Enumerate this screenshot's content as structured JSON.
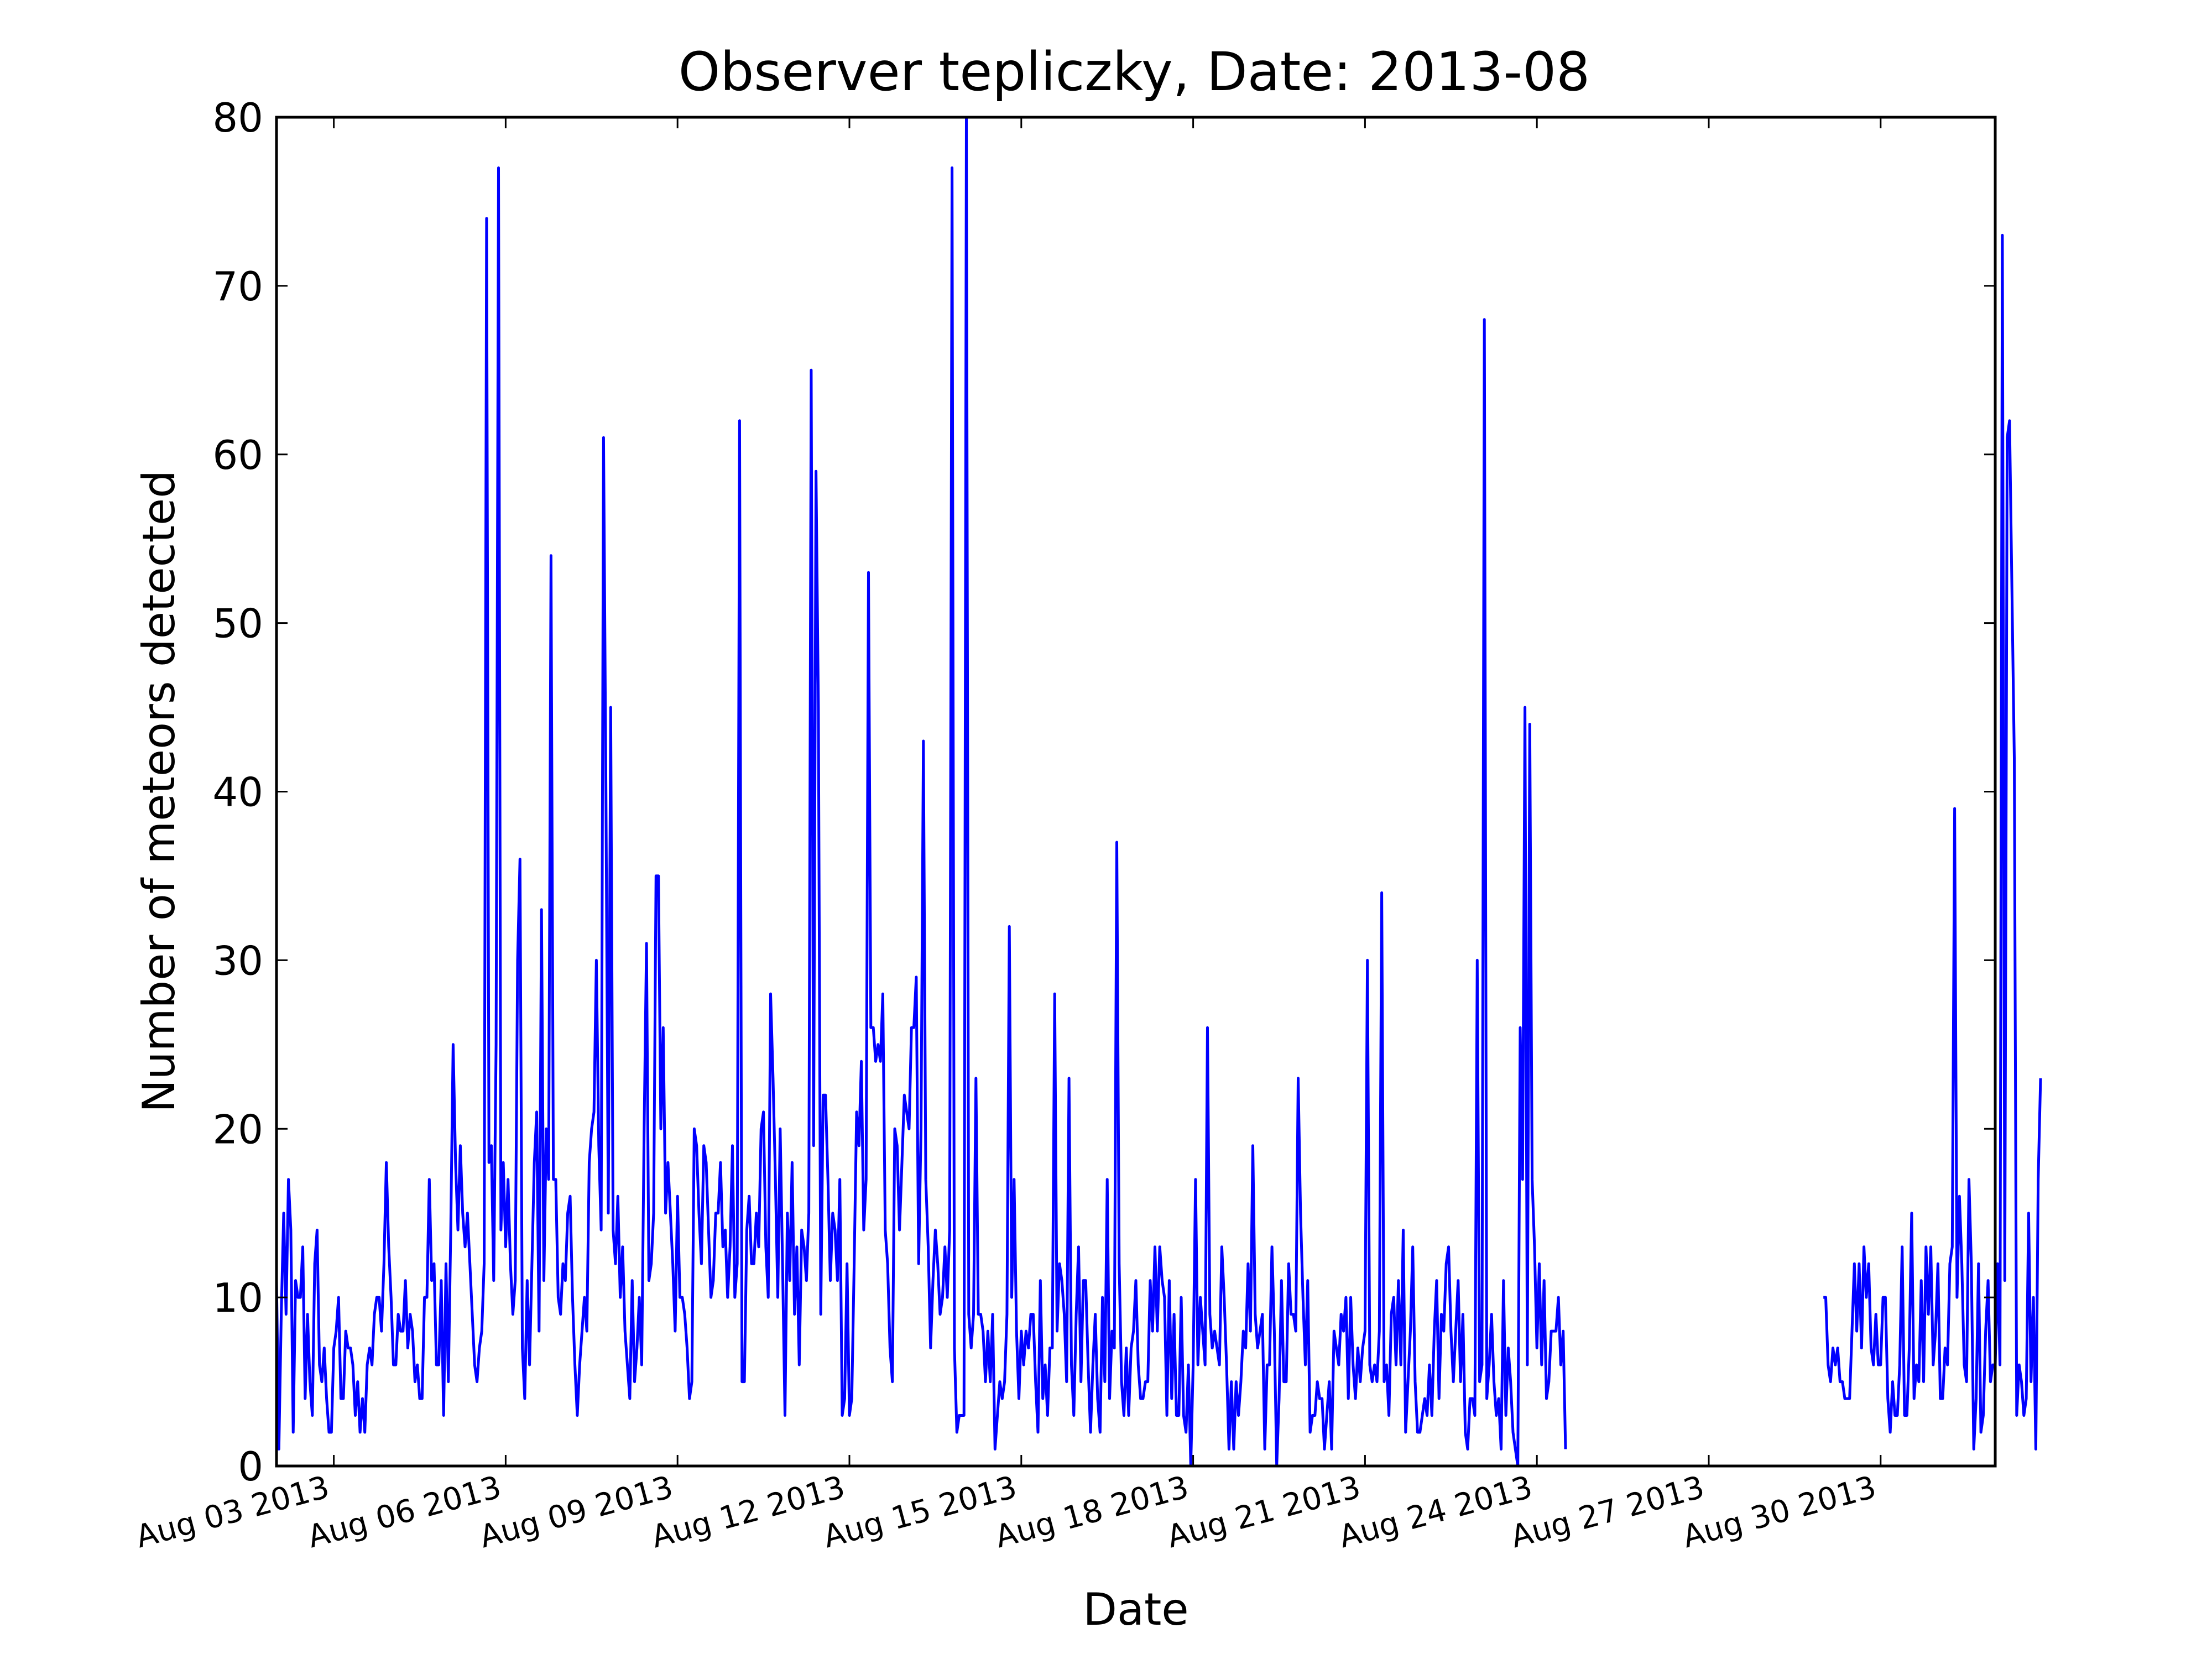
{
  "chart_data": {
    "type": "line",
    "title": "Observer tepliczky, Date: 2013-08",
    "xlabel": "Date",
    "ylabel": "Number of meteors detected",
    "xlim": [
      "2013-08-02",
      "2013-09-01"
    ],
    "ylim": [
      0,
      80
    ],
    "xticks": [
      "2013-08-03",
      "2013-08-06",
      "2013-08-09",
      "2013-08-12",
      "2013-08-15",
      "2013-08-18",
      "2013-08-21",
      "2013-08-24",
      "2013-08-27",
      "2013-08-30"
    ],
    "xtick_labels": [
      "Aug 03 2013",
      "Aug 06 2013",
      "Aug 09 2013",
      "Aug 12 2013",
      "Aug 15 2013",
      "Aug 18 2013",
      "Aug 21 2013",
      "Aug 24 2013",
      "Aug 27 2013",
      "Aug 30 2013"
    ],
    "yticks": [
      0,
      10,
      20,
      30,
      40,
      50,
      60,
      70,
      80
    ],
    "grid": false,
    "line_color": "#0000ff",
    "series": [
      {
        "segments": [
          {
            "start": "2013-08-02 00:00",
            "step_hours": 1,
            "values": [
              11,
              1,
              9,
              15,
              9,
              17,
              14,
              2,
              11,
              10,
              10,
              13,
              4,
              9,
              5,
              3,
              12,
              14,
              6,
              5,
              7,
              4,
              2,
              2,
              7,
              8,
              10,
              4,
              4,
              8,
              7,
              7,
              6,
              3,
              5,
              2,
              4,
              2,
              6,
              7,
              6,
              9,
              10,
              10,
              8,
              12,
              18,
              13,
              10,
              6,
              6,
              9,
              8,
              8,
              11,
              7,
              9,
              8,
              5,
              6,
              4,
              4,
              10,
              10,
              17,
              11,
              12,
              6,
              6,
              11,
              3,
              12,
              5,
              14,
              25,
              18,
              14,
              19,
              15,
              13,
              15,
              12,
              9,
              6,
              5,
              7,
              8,
              12,
              74,
              18,
              19,
              11,
              25,
              77,
              14,
              18,
              13,
              17,
              12,
              9,
              11,
              30,
              36,
              7,
              4,
              11,
              6,
              12,
              18,
              21,
              8,
              33,
              11,
              20,
              17,
              54,
              17,
              17,
              10,
              9,
              12,
              11,
              15,
              16,
              10,
              6,
              3,
              6,
              8,
              10,
              8,
              18,
              20,
              21,
              30,
              19,
              14,
              61,
              40,
              15,
              45,
              14,
              12,
              16,
              10,
              13,
              8,
              6,
              4,
              11,
              5,
              7,
              10,
              6,
              20,
              31,
              11,
              12,
              15,
              35,
              35,
              20,
              26,
              15,
              18,
              15,
              12,
              8,
              16,
              10,
              10,
              9,
              7,
              4,
              5,
              20,
              19,
              15,
              12,
              19,
              18,
              14,
              10,
              11,
              15,
              15,
              18,
              13,
              14,
              10,
              13,
              19,
              10,
              12,
              62,
              5,
              5,
              14,
              16,
              12,
              12,
              15,
              13,
              20,
              21,
              13,
              10,
              28,
              23,
              17,
              10,
              20,
              12,
              3,
              15,
              11,
              18,
              9,
              13,
              6,
              14,
              13,
              11,
              15,
              65,
              19,
              59,
              45,
              9,
              22,
              22,
              17,
              11,
              15,
              14,
              11,
              17,
              3,
              4,
              12,
              3,
              4,
              12,
              21,
              19,
              24,
              14,
              17,
              53,
              26,
              26,
              24,
              25,
              24,
              28,
              14,
              12,
              7,
              5,
              20,
              19,
              14,
              18,
              22,
              21,
              20,
              26,
              26,
              29,
              12,
              20,
              43,
              17,
              13,
              7,
              11,
              14,
              12,
              9,
              10,
              13,
              10,
              14,
              77,
              7,
              2,
              3,
              3,
              3,
              80,
              9,
              7,
              9,
              23,
              9,
              9,
              8,
              5,
              8,
              5,
              9,
              1,
              3,
              5,
              4,
              5,
              9,
              32,
              10,
              17,
              8,
              4,
              8,
              6,
              8,
              7,
              9,
              9,
              5,
              2,
              11,
              4,
              6,
              3,
              7,
              7,
              28,
              8,
              12,
              11,
              9,
              5,
              23,
              6,
              3,
              9,
              13,
              5,
              11,
              11,
              6,
              2,
              6,
              9,
              4,
              2,
              10,
              5,
              17,
              4,
              8,
              7,
              37,
              12,
              5,
              3,
              7,
              3,
              7,
              8,
              11,
              6,
              4,
              4,
              5,
              5,
              11,
              8,
              13,
              8,
              13,
              11,
              10,
              3,
              11,
              4,
              9,
              3,
              3,
              10,
              3,
              2,
              6,
              0,
              6,
              17,
              6,
              10,
              8,
              6,
              26,
              9,
              7,
              8,
              7,
              6,
              13,
              10,
              6,
              1,
              5,
              1,
              5,
              3,
              5,
              8,
              7,
              12,
              8,
              19,
              9,
              7,
              8,
              9,
              1,
              6,
              6,
              13,
              8,
              0,
              4,
              11,
              5,
              5,
              12,
              9,
              9,
              8,
              23,
              15,
              10,
              6,
              11,
              2,
              3,
              3,
              5,
              4,
              4,
              1,
              3,
              5,
              1,
              8,
              7,
              6,
              9,
              8,
              10,
              4,
              10,
              6,
              4,
              7,
              5,
              7,
              8,
              30,
              6,
              5,
              6,
              5,
              8,
              34,
              5,
              6,
              3,
              9,
              10,
              6,
              11,
              6,
              14,
              2,
              5,
              8,
              13,
              5,
              2,
              2,
              3,
              4,
              3,
              6,
              3,
              8,
              11,
              4,
              9,
              8,
              12,
              13,
              8,
              5,
              8,
              11,
              5,
              9,
              2,
              1,
              4,
              4,
              3,
              30,
              5,
              6,
              68,
              4,
              6,
              9,
              5,
              3,
              4,
              1,
              11,
              3,
              7,
              5,
              2,
              1,
              0,
              26,
              17,
              45,
              6,
              44,
              17,
              13,
              7,
              12,
              6,
              11,
              4,
              5,
              8,
              8,
              8,
              10,
              6,
              8,
              1
            ]
          },
          {
            "start": "2013-08-29 00:00",
            "step_hours": 1,
            "values": [
              10,
              10,
              6,
              5,
              7,
              6,
              7,
              5,
              5,
              4,
              4,
              4,
              8,
              12,
              8,
              12,
              7,
              13,
              10,
              12,
              7,
              6,
              9,
              6,
              6,
              10,
              10,
              4,
              2,
              5,
              3,
              3,
              6,
              13,
              3,
              3,
              7,
              15,
              4,
              6,
              5,
              11,
              5,
              13,
              9,
              13,
              6,
              8,
              12,
              4,
              4,
              7,
              6,
              12,
              13,
              39,
              10,
              16,
              12,
              6,
              5,
              17,
              12,
              1,
              4,
              12,
              2,
              3,
              8,
              11,
              5,
              6,
              6,
              12,
              6,
              73,
              11,
              61,
              62,
              52,
              42,
              3,
              6,
              5,
              3,
              4,
              15,
              5,
              10,
              1,
              17,
              23
            ]
          }
        ]
      }
    ]
  }
}
